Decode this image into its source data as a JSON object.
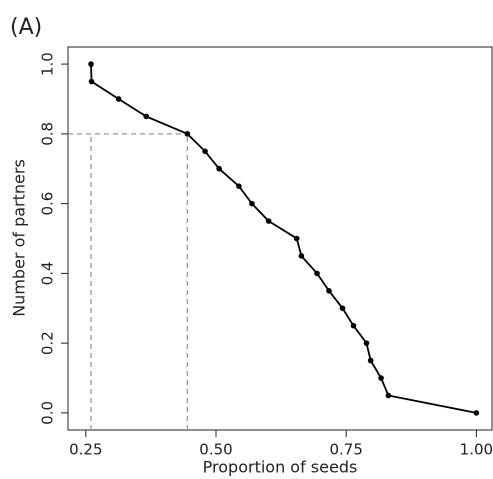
{
  "panel_label": "(A)",
  "chart_data": {
    "type": "line",
    "x_label": "Proportion of seeds",
    "y_label": "Number of partners",
    "x": [
      0.26,
      0.261,
      0.313,
      0.366,
      0.445,
      0.479,
      0.506,
      0.544,
      0.569,
      0.601,
      0.655,
      0.664,
      0.694,
      0.717,
      0.743,
      0.764,
      0.789,
      0.797,
      0.817,
      0.831,
      1.0
    ],
    "series": [
      {
        "color": "#000000",
        "values": [
          1.0,
          0.95,
          0.9,
          0.85,
          0.8,
          0.75,
          0.7,
          0.65,
          0.6,
          0.55,
          0.5,
          0.45,
          0.4,
          0.35,
          0.3,
          0.25,
          0.2,
          0.15,
          0.1,
          0.05,
          0.0
        ]
      }
    ],
    "xlim": [
      0.2158,
      1.03
    ],
    "ylim": [
      -0.049,
      1.049
    ],
    "xticks": [
      0.25,
      {
        "value": 0.5,
        "label": "0.50"
      },
      0.75,
      {
        "value": 1,
        "label": "1.00"
      }
    ],
    "yticks": [
      {
        "value": 0,
        "label": "0.0"
      },
      0.2,
      0.4,
      0.6,
      0.8,
      {
        "value": 1,
        "label": "1.0"
      }
    ],
    "reference_lines": {
      "x": [
        0.26,
        0.445
      ],
      "y": 0.8,
      "color": "#999999"
    }
  }
}
